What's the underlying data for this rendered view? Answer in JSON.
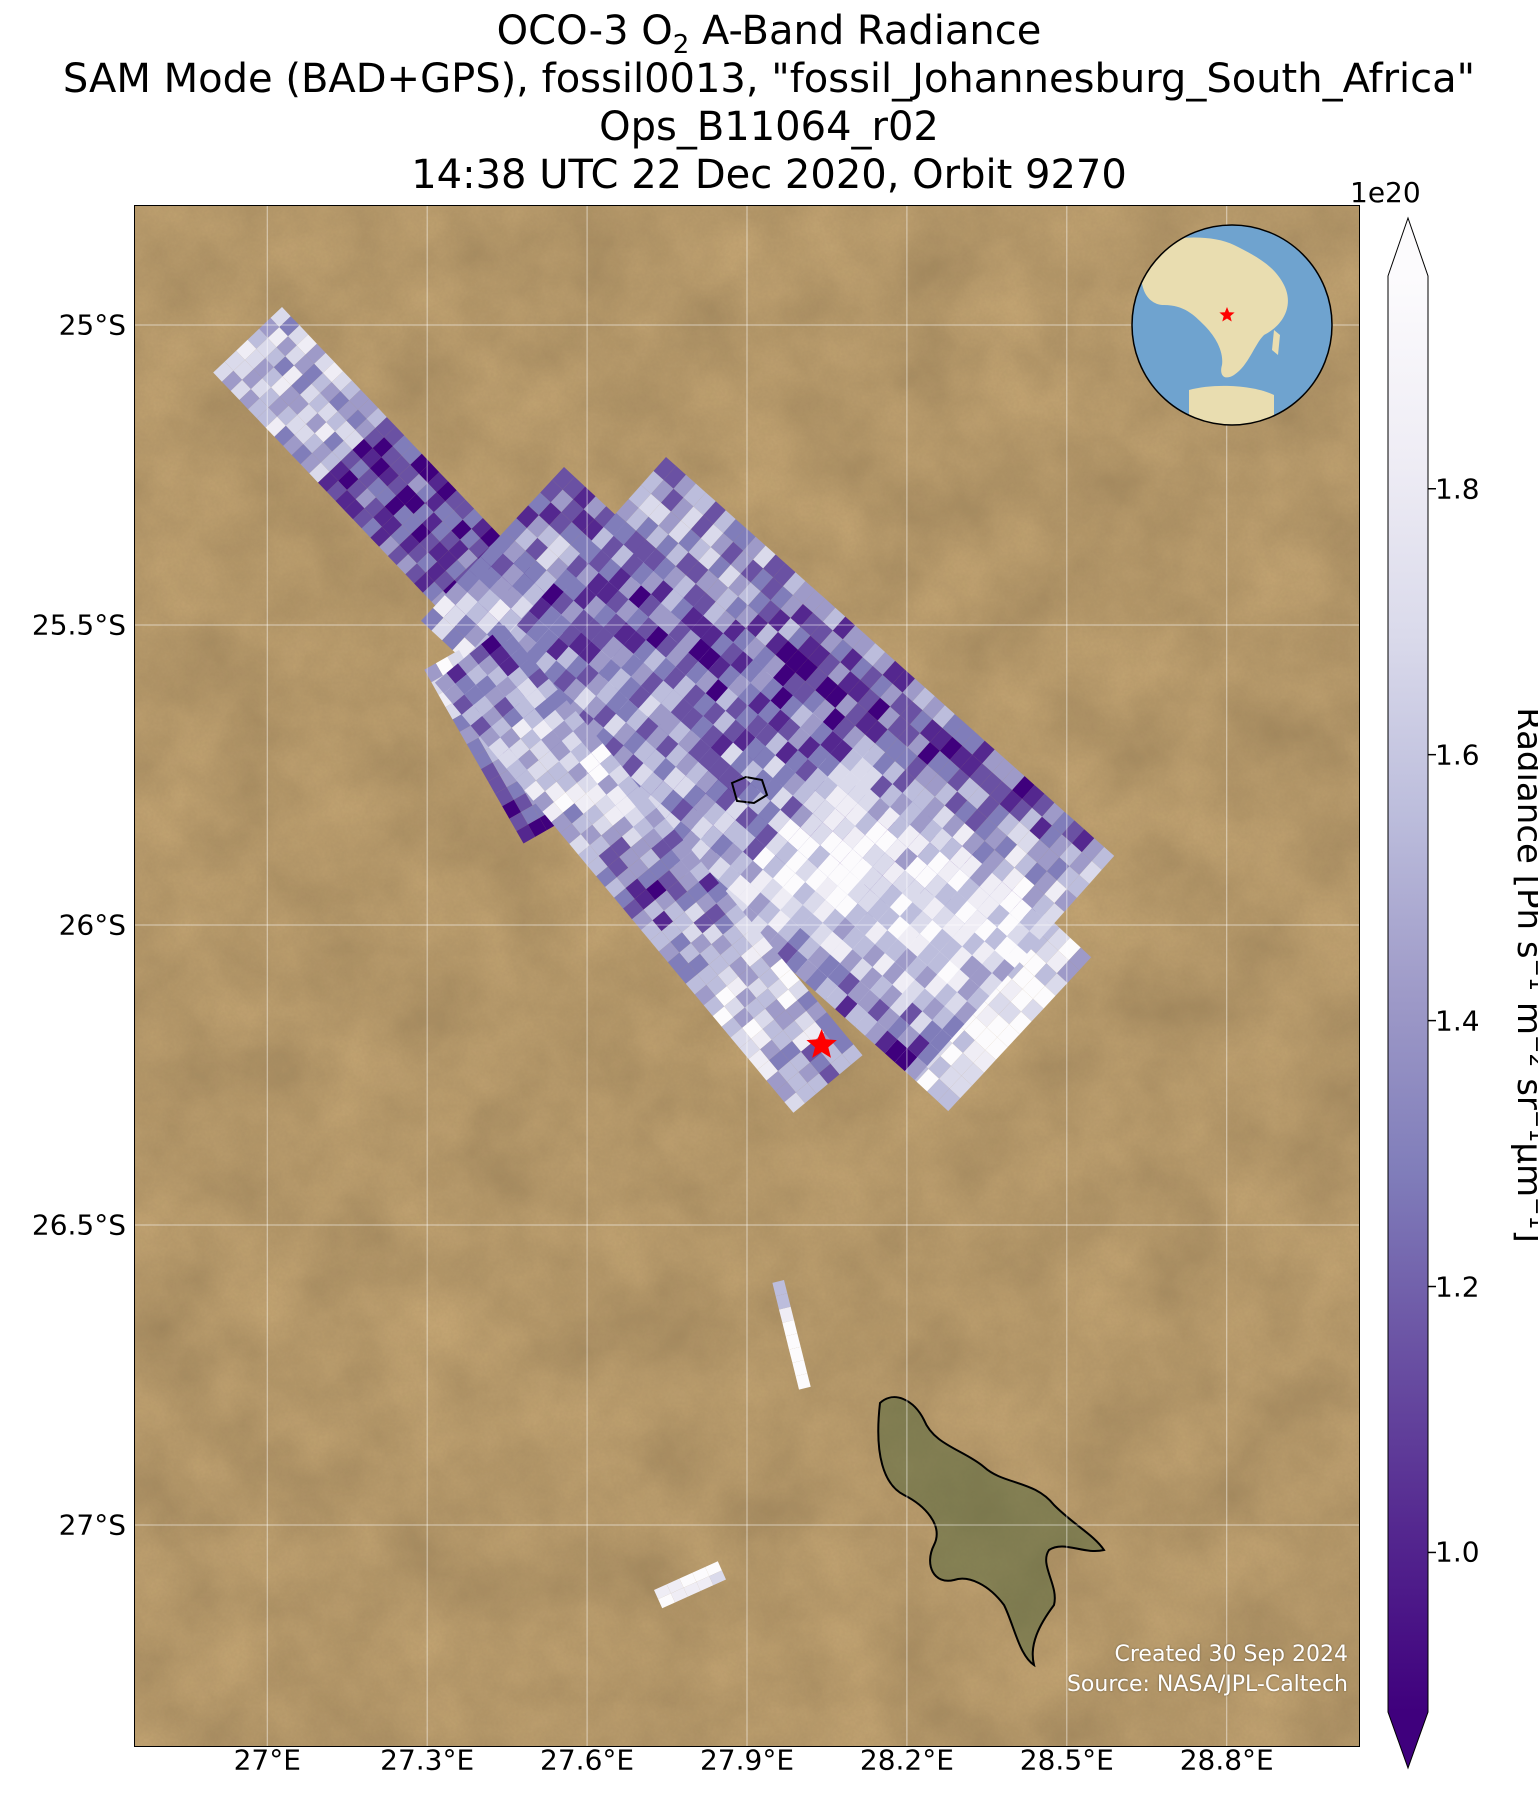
{
  "title": {
    "line1_prefix": "OCO-3 O",
    "line1_sub": "2",
    "line1_suffix": " A-Band Radiance",
    "line2": "SAM Mode (BAD+GPS), fossil0013, \"fossil_Johannesburg_South_Africa\"",
    "line3": "Ops_B11064_r02",
    "line4": "14:38 UTC 22 Dec 2020, Orbit 9270"
  },
  "map": {
    "lon_range": [
      26.75,
      29.05
    ],
    "lat_range": [
      -27.37,
      -24.8
    ],
    "lat_ticks": [
      {
        "value": -25.0,
        "label": "25°S"
      },
      {
        "value": -25.5,
        "label": "25.5°S"
      },
      {
        "value": -26.0,
        "label": "26°S"
      },
      {
        "value": -26.5,
        "label": "26.5°S"
      },
      {
        "value": -27.0,
        "label": "27°S"
      }
    ],
    "lon_ticks": [
      {
        "value": 27.0,
        "label": "27°E"
      },
      {
        "value": 27.3,
        "label": "27.3°E"
      },
      {
        "value": 27.6,
        "label": "27.6°E"
      },
      {
        "value": 27.9,
        "label": "27.9°E"
      },
      {
        "value": 28.2,
        "label": "28.2°E"
      },
      {
        "value": 28.5,
        "label": "28.5°E"
      },
      {
        "value": 28.8,
        "label": "28.8°E"
      }
    ],
    "target_marker": {
      "lon": 28.04,
      "lat": -26.2,
      "color": "#ff0000"
    },
    "background_color": "#8a6a3e",
    "inset_globe": {
      "ocean_color": "#6fa3cf",
      "land_color": "#e9ddb0",
      "marker_color": "#ff0000"
    }
  },
  "colorbar": {
    "label_prefix": "Radiance [Ph s",
    "exponent_label": "1e20",
    "range": [
      0.88,
      1.96
    ],
    "colors": [
      "#3f007d",
      "#54278f",
      "#6a51a3",
      "#807dba",
      "#9e9ac8",
      "#bcbddc",
      "#dadaeb",
      "#efedf5",
      "#fcfbfd"
    ],
    "ticks": [
      {
        "value": 1.0,
        "label": "1.0"
      },
      {
        "value": 1.2,
        "label": "1.2"
      },
      {
        "value": 1.4,
        "label": "1.4"
      },
      {
        "value": 1.6,
        "label": "1.6"
      },
      {
        "value": 1.8,
        "label": "1.8"
      }
    ]
  },
  "credits": {
    "line1": "Created 30 Sep 2024",
    "line2": "Source: NASA/JPL-Caltech"
  }
}
